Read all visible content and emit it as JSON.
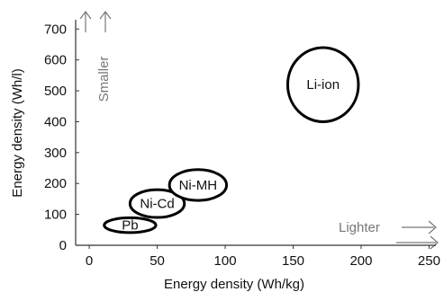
{
  "chart_data": {
    "type": "scatter",
    "xlabel": "Energy density (Wh/kg)",
    "ylabel": "Energy density (Wh/l)",
    "xlim": [
      -10,
      255
    ],
    "ylim": [
      0,
      730
    ],
    "xticks": [
      0,
      50,
      100,
      150,
      200,
      250
    ],
    "yticks": [
      0,
      100,
      200,
      300,
      400,
      500,
      600,
      700
    ],
    "grid": false,
    "points": [
      {
        "label": "Pb",
        "x": 30,
        "y": 65,
        "w": 38,
        "h": 48
      },
      {
        "label": "Ni-Cd",
        "x": 50,
        "y": 135,
        "w": 40,
        "h": 90
      },
      {
        "label": "Ni-MH",
        "x": 80,
        "y": 195,
        "w": 42,
        "h": 100
      },
      {
        "label": "Li-ion",
        "x": 172,
        "y": 520,
        "w": 52,
        "h": 240
      }
    ],
    "annotations": {
      "y_direction": "Smaller",
      "x_direction": "Lighter"
    },
    "colors": {
      "axis": "#333333",
      "bubble": "#000000",
      "arrow": "#777777"
    }
  }
}
